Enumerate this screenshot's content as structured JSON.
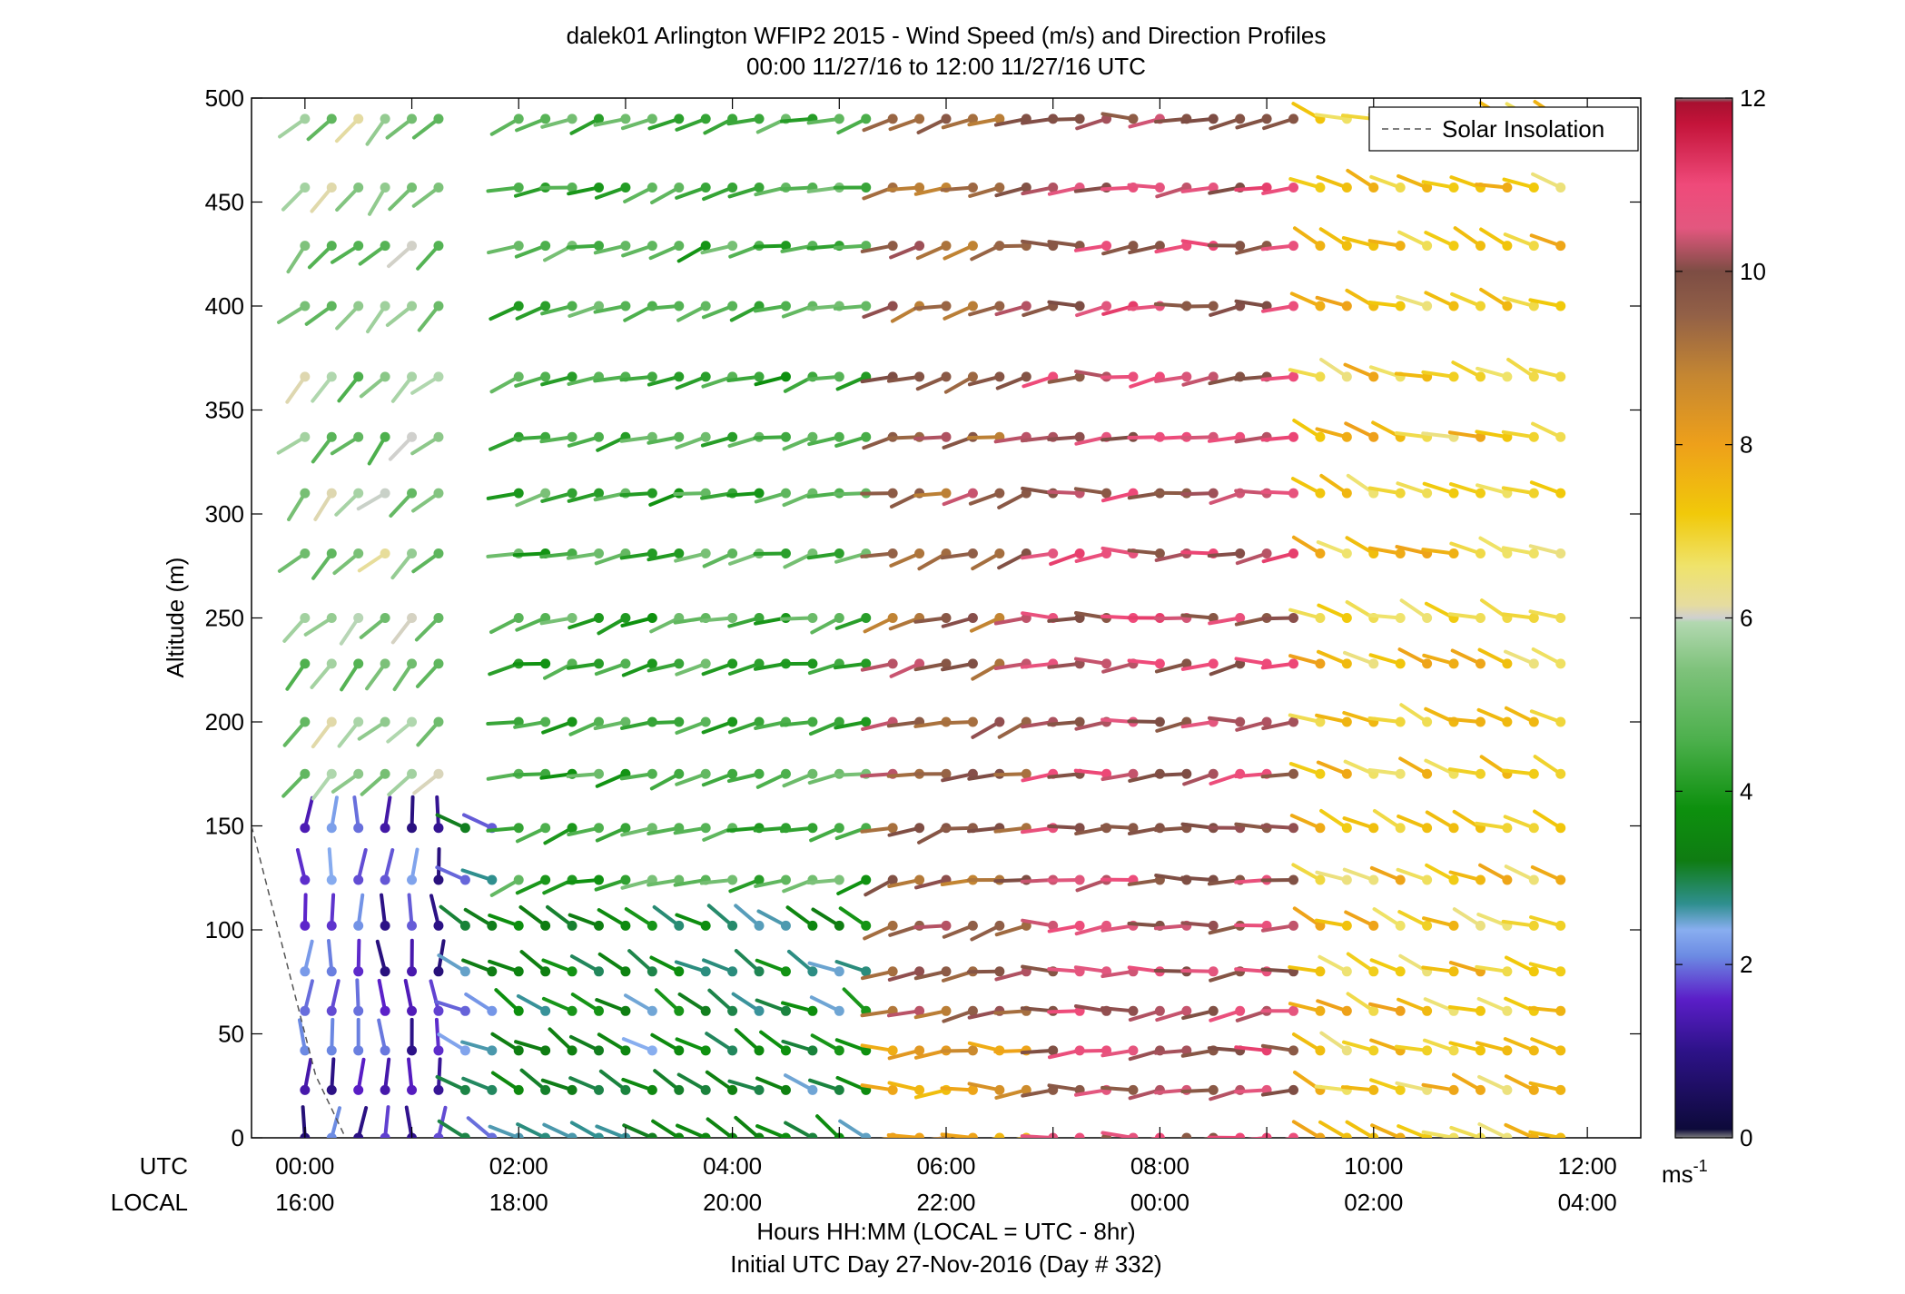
{
  "chart_data": {
    "type": "scatter",
    "title": "dalek01 Arlington WFIP2 2015 - Wind Speed (m/s) and Direction Profiles",
    "subtitle": "00:00 11/27/16 to 12:00 11/27/16  UTC",
    "ylabel": "Altitude (m)",
    "ylim": [
      0,
      500
    ],
    "y_ticks": [
      "0",
      "50",
      "100",
      "150",
      "200",
      "250",
      "300",
      "350",
      "400",
      "450",
      "500"
    ],
    "xlim_hours": [
      -0.5,
      12.5
    ],
    "x_row_labels": [
      "UTC",
      "LOCAL"
    ],
    "x_ticks_utc": [
      "00:00",
      "02:00",
      "04:00",
      "06:00",
      "08:00",
      "10:00",
      "12:00"
    ],
    "x_ticks_local": [
      "16:00",
      "18:00",
      "20:00",
      "22:00",
      "00:00",
      "02:00",
      "04:00"
    ],
    "xlabel": "Hours HH:MM  (LOCAL = UTC - 8hr)",
    "xlabel2": "Initial UTC Day 27-Nov-2016 (Day # 332)",
    "legend": {
      "label": "Solar Insolation",
      "placement": "top-right"
    },
    "colorbar": {
      "min": 0,
      "max": 12,
      "ticks": [
        "0",
        "2",
        "4",
        "6",
        "8",
        "10",
        "12"
      ],
      "unit_base": "ms",
      "unit_exp": "-1"
    },
    "solar_insolation": [
      [
        -0.5,
        150
      ],
      [
        0.1,
        30
      ],
      [
        0.38,
        0
      ]
    ],
    "levels": [
      0,
      23,
      42,
      61,
      80,
      102,
      124,
      149,
      175,
      200,
      228,
      250,
      281,
      310,
      337,
      366,
      400,
      429,
      457,
      490
    ],
    "times": [
      0,
      0.25,
      0.5,
      0.75,
      1,
      1.25,
      1.5,
      1.75,
      2,
      2.25,
      2.5,
      2.75,
      3,
      3.25,
      3.5,
      3.75,
      4,
      4.25,
      4.5,
      4.75,
      5,
      5.25,
      5.5,
      5.75,
      6,
      6.25,
      6.5,
      6.75,
      7,
      7.25,
      7.5,
      7.75,
      8,
      8.25,
      8.5,
      8.75,
      9,
      9.25,
      9.5,
      9.75,
      10,
      10.25,
      10.5,
      10.75,
      11,
      11.25,
      11.5,
      11.75
    ],
    "wind_profiles": [
      {
        "from": 0.0,
        "to": 1.5,
        "z_min": 0,
        "z_max": 160,
        "speed": 1.6,
        "dir": 0
      },
      {
        "from": 1.5,
        "to": 2.0,
        "z_min": 0,
        "z_max": 160,
        "speed": 2.4,
        "dir": 300
      },
      {
        "from": 2.0,
        "to": 5.5,
        "z_min": 0,
        "z_max": 120,
        "speed": 3.2,
        "dir": 300
      },
      {
        "from": 2.0,
        "to": 5.5,
        "z_min": 120,
        "z_max": 500,
        "speed": 4.6,
        "dir": 255
      },
      {
        "from": 0.0,
        "to": 1.5,
        "z_min": 160,
        "z_max": 500,
        "speed": 5.4,
        "dir": 225
      },
      {
        "from": 5.5,
        "to": 7.0,
        "z_min": 0,
        "z_max": 60,
        "speed": 8.2,
        "dir": 270
      },
      {
        "from": 5.5,
        "to": 7.0,
        "z_min": 60,
        "z_max": 500,
        "speed": 9.6,
        "dir": 255
      },
      {
        "from": 7.0,
        "to": 9.3,
        "z_min": 0,
        "z_max": 500,
        "speed": 10.4,
        "dir": 265
      },
      {
        "from": 9.3,
        "to": 12.0,
        "z_min": 0,
        "z_max": 500,
        "speed": 7.2,
        "dir": 290
      }
    ]
  }
}
